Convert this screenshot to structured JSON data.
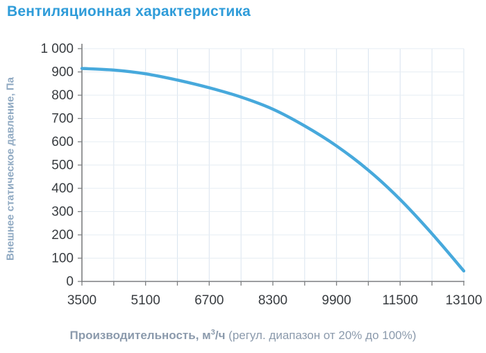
{
  "title": "Вентиляционная характеристика",
  "xlabel_parts": {
    "bold": "Производительность, м",
    "sup": "3",
    "bold2": "/ч",
    "rest": " (регул. диапазон от 20% до 100%)"
  },
  "chart_data": {
    "type": "line",
    "title": "Вентиляционная характеристика",
    "xlabel": "Производительность, м3/ч (регул. диапазон от 20% до 100%)",
    "ylabel": "Внешнее статическое давление, Па",
    "xlim": [
      3500,
      13100
    ],
    "ylim": [
      0,
      1000
    ],
    "x_major_step": 1600,
    "x_minor_step": 800,
    "y_step": 100,
    "x_tick_labels": [
      "3500",
      "5100",
      "6700",
      "8300",
      "9900",
      "11500",
      "13100"
    ],
    "y_tick_labels": [
      "0",
      "100",
      "200",
      "300",
      "400",
      "500",
      "600",
      "700",
      "800",
      "900",
      "1 000"
    ],
    "grid": true,
    "legend": false,
    "series": [
      {
        "name": "Внешнее статическое давление, Па",
        "x": [
          3500,
          4300,
          5100,
          5900,
          6700,
          7500,
          8300,
          9100,
          9900,
          10700,
          11500,
          12300,
          13100
        ],
        "y": [
          915,
          908,
          892,
          865,
          832,
          792,
          740,
          668,
          582,
          478,
          352,
          205,
          45
        ]
      }
    ]
  },
  "colors": {
    "title": "#2f9cd9",
    "curve": "#47a9dc",
    "axis": "#7d7f81",
    "grid_vertical": "#d9e4ef",
    "grid_horizontal": "#e6edf3",
    "tick_label": "#383c40",
    "x_axis_label": "#8b9aac",
    "y_axis_label": "#8fa9c2"
  }
}
